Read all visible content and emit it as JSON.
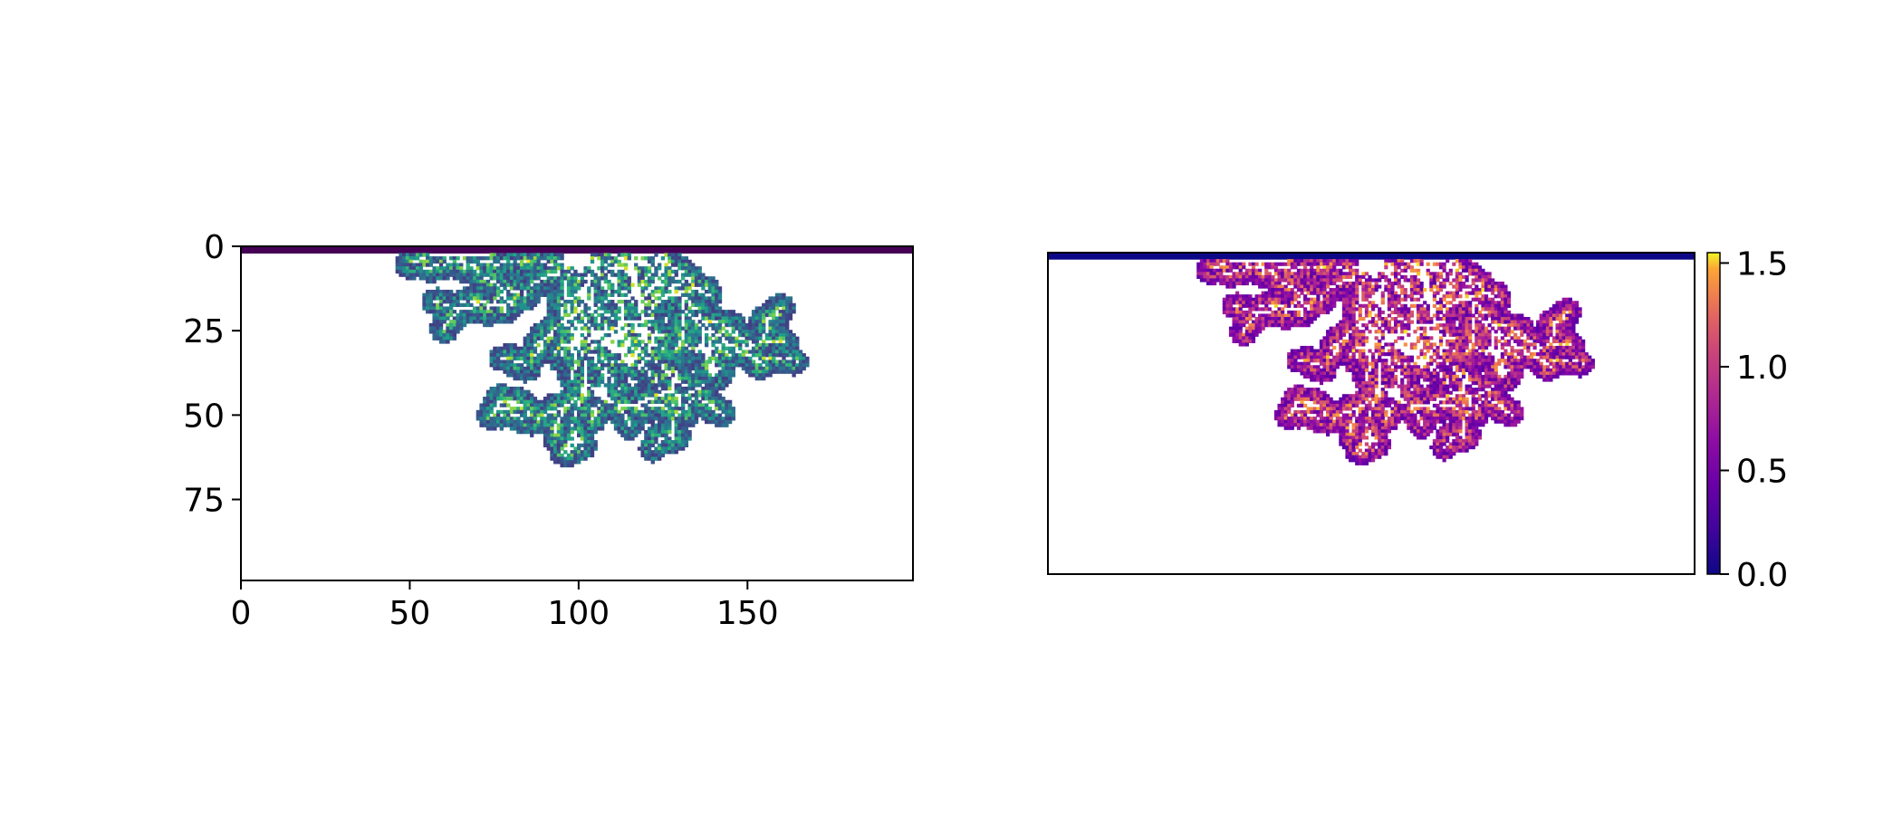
{
  "chart_data": [
    {
      "type": "heatmap",
      "title": "",
      "xlabel": "",
      "ylabel": "",
      "colormap": "viridis",
      "grid_shape": [
        100,
        200
      ],
      "xlim": [
        0,
        199
      ],
      "ylim": [
        99,
        0
      ],
      "xticks": [
        0,
        50,
        100,
        150
      ],
      "yticks": [
        0,
        25,
        50,
        75
      ],
      "xtick_labels": [
        "0",
        "50",
        "100",
        "150"
      ],
      "ytick_labels": [
        "0",
        "25",
        "50",
        "75"
      ],
      "grid": false,
      "pattern": "branching fractal growth pattern spreading downward from top centre (x≈100, y≈0) to about y≈60 and x≈35–165; channels unfilled",
      "colors": {
        "low": "#440154",
        "mid": "#21918c",
        "high": "#fde725"
      }
    },
    {
      "type": "heatmap",
      "title": "",
      "xlabel": "",
      "ylabel": "",
      "colormap": "plasma",
      "grid_shape": [
        100,
        200
      ],
      "xlim": [
        0,
        199
      ],
      "ylim": [
        99,
        0
      ],
      "xticks": [],
      "yticks": [],
      "grid": false,
      "pattern": "same branching growth pattern as left panel",
      "colorbar": {
        "range": [
          0.0,
          1.55
        ],
        "ticks": [
          0.0,
          0.5,
          1.0,
          1.5
        ],
        "tick_labels": [
          "0.0",
          "0.5",
          "1.0",
          "1.5"
        ],
        "placement": "right"
      },
      "colors": {
        "low": "#0d0887",
        "mid": "#cc4778",
        "high": "#f0f921"
      }
    }
  ]
}
